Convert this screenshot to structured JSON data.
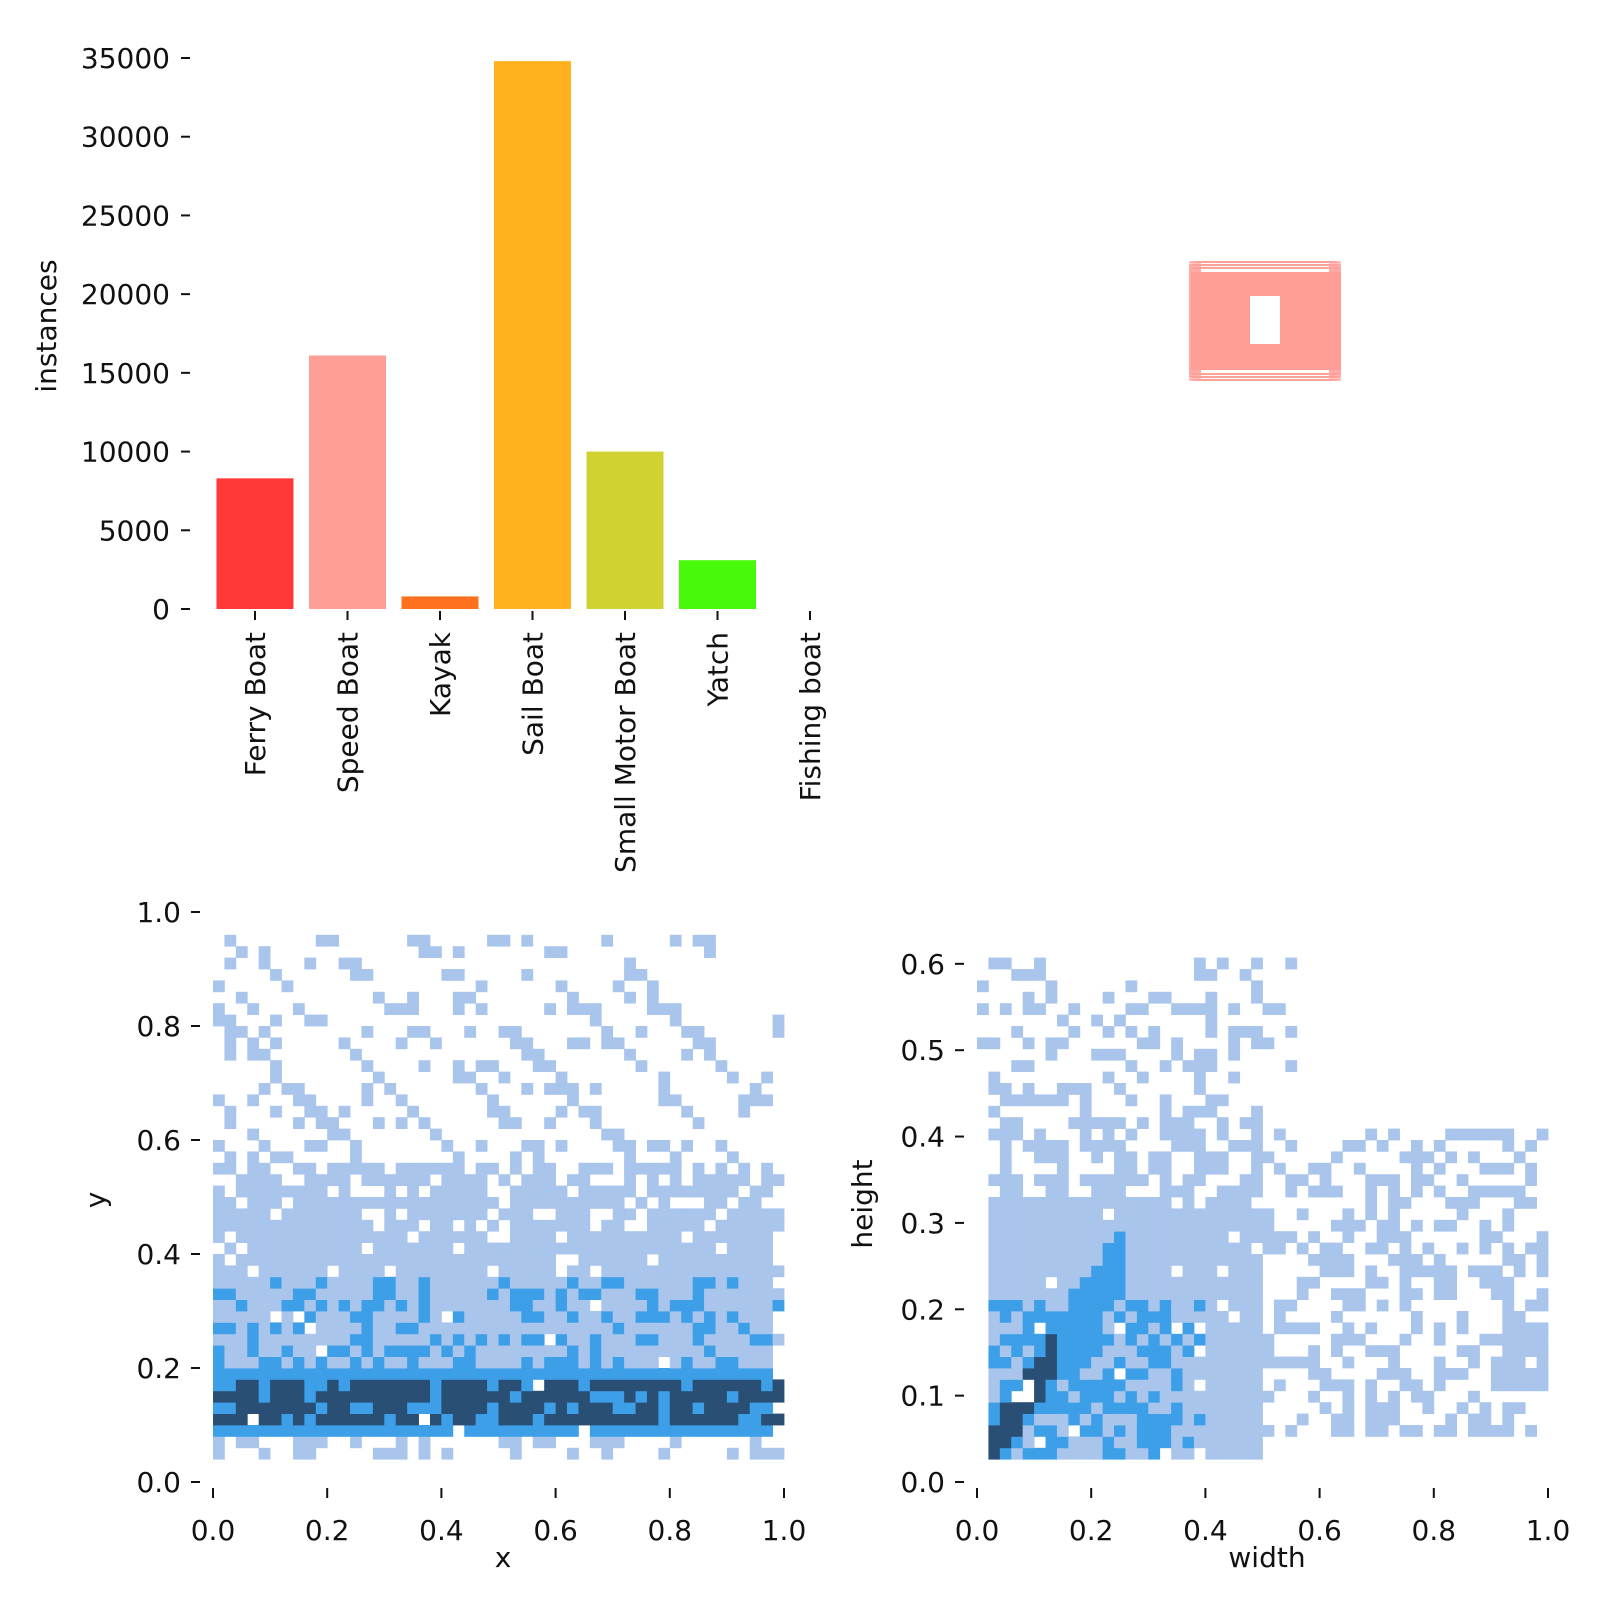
{
  "chart_data": [
    {
      "id": "class-bar",
      "type": "bar",
      "categories": [
        "Ferry Boat",
        "Speed Boat",
        "Kayak",
        "Sail Boat",
        "Small Motor Boat",
        "Yatch",
        "Fishing boat"
      ],
      "values": [
        8300,
        16100,
        800,
        34800,
        10000,
        3100,
        0
      ],
      "colors": [
        "#ff3838",
        "#ff9d97",
        "#ff701f",
        "#ffb21d",
        "#cfd231",
        "#48f90a",
        "#92cc17"
      ],
      "ylabel": "instances",
      "xlabel": "",
      "ylim": [
        0,
        35000
      ],
      "yticks": [
        "0",
        "5000",
        "10000",
        "15000",
        "20000",
        "25000",
        "30000",
        "35000"
      ],
      "grid": false
    },
    {
      "id": "box-overlay",
      "type": "other",
      "description_color": "#ff9d97"
    },
    {
      "id": "xy-hist",
      "type": "heatmap",
      "xlabel": "x",
      "ylabel": "y",
      "xlim": [
        0,
        1
      ],
      "ylim": [
        0,
        1
      ],
      "xticks": [
        "0.0",
        "0.2",
        "0.4",
        "0.6",
        "0.8",
        "1.0"
      ],
      "yticks": [
        "0.0",
        "0.2",
        "0.4",
        "0.6",
        "0.8",
        "1.0"
      ],
      "colors": {
        "low": "#a9c5ec",
        "mid": "#3d9fe8",
        "high": "#2a4f75"
      },
      "density_rows": [
        {
          "y": 0.11,
          "level": 3
        },
        {
          "y": 0.14,
          "level": 3
        },
        {
          "y": 0.17,
          "level": 2
        },
        {
          "y": 0.21,
          "level": 2
        },
        {
          "y": 0.25,
          "level": 1
        },
        {
          "y": 0.3,
          "level": 1
        },
        {
          "y": 0.36,
          "level": 1
        }
      ]
    },
    {
      "id": "wh-hist",
      "type": "heatmap",
      "xlabel": "width",
      "ylabel": "height",
      "xlim": [
        0,
        1
      ],
      "ylim": [
        0,
        0.66
      ],
      "xticks": [
        "0.0",
        "0.2",
        "0.4",
        "0.6",
        "0.8",
        "1.0"
      ],
      "yticks": [
        "0.0",
        "0.1",
        "0.2",
        "0.3",
        "0.4",
        "0.5",
        "0.6"
      ],
      "colors": {
        "low": "#a9c5ec",
        "mid": "#3d9fe8",
        "high": "#2a4f75"
      }
    }
  ]
}
